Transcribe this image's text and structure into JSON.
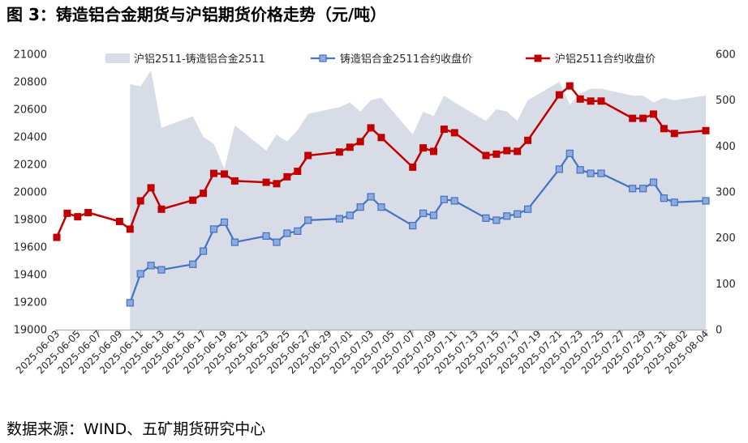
{
  "source": "数据来源：WIND、五矿期货研究中心",
  "chart_data": {
    "type": "line",
    "title": "图 3：铸造铝合金期货与沪铝期货价格走势（元/吨）",
    "x_range": [
      "2025-06-03",
      "2025-08-04"
    ],
    "x_ticks": [
      "2025-06-03",
      "2025-06-05",
      "2025-06-07",
      "2025-06-09",
      "2025-06-11",
      "2025-06-13",
      "2025-06-15",
      "2025-06-17",
      "2025-06-19",
      "2025-06-21",
      "2025-06-23",
      "2025-06-25",
      "2025-06-27",
      "2025-06-29",
      "2025-07-01",
      "2025-07-03",
      "2025-07-05",
      "2025-07-07",
      "2025-07-09",
      "2025-07-11",
      "2025-07-13",
      "2025-07-15",
      "2025-07-17",
      "2025-07-19",
      "2025-07-21",
      "2025-07-23",
      "2025-07-25",
      "2025-07-27",
      "2025-07-29",
      "2025-07-31",
      "2025-08-02",
      "2025-08-04"
    ],
    "y_left": {
      "min": 19000,
      "max": 21000,
      "ticks": [
        19000,
        19200,
        19400,
        19600,
        19800,
        20000,
        20200,
        20400,
        20600,
        20800,
        21000
      ]
    },
    "y_right": {
      "min": 0,
      "max": 600,
      "ticks": [
        0,
        100,
        200,
        300,
        400,
        500,
        600
      ]
    },
    "grid": false,
    "legend_position": "top",
    "series": [
      {
        "name": "沪铝2511-铸造铝合金2511",
        "kind": "area",
        "axis": "right",
        "color": "#D7DCE6",
        "x": [
          "2025-06-10",
          "2025-06-11",
          "2025-06-12",
          "2025-06-13",
          "2025-06-16",
          "2025-06-17",
          "2025-06-18",
          "2025-06-19",
          "2025-06-20",
          "2025-06-23",
          "2025-06-24",
          "2025-06-25",
          "2025-06-26",
          "2025-06-27",
          "2025-06-30",
          "2025-07-01",
          "2025-07-02",
          "2025-07-03",
          "2025-07-04",
          "2025-07-07",
          "2025-07-08",
          "2025-07-09",
          "2025-07-10",
          "2025-07-11",
          "2025-07-14",
          "2025-07-15",
          "2025-07-16",
          "2025-07-17",
          "2025-07-18",
          "2025-07-21",
          "2025-07-22",
          "2025-07-23",
          "2025-07-24",
          "2025-07-25",
          "2025-07-28",
          "2025-07-29",
          "2025-07-30",
          "2025-07-31",
          "2025-08-01",
          "2025-08-04"
        ],
        "values": [
          535,
          530,
          565,
          440,
          465,
          420,
          405,
          350,
          445,
          390,
          425,
          410,
          435,
          470,
          485,
          495,
          475,
          500,
          505,
          425,
          475,
          465,
          510,
          495,
          455,
          480,
          475,
          455,
          500,
          540,
          490,
          515,
          525,
          525,
          510,
          510,
          495,
          505,
          500,
          510
        ]
      },
      {
        "name": "铸造铝合金2511合约收盘价",
        "kind": "line",
        "axis": "left",
        "color": "#4472C4",
        "marker_fill": "#8EA9DB",
        "x": [
          "2025-06-10",
          "2025-06-11",
          "2025-06-12",
          "2025-06-13",
          "2025-06-16",
          "2025-06-17",
          "2025-06-18",
          "2025-06-19",
          "2025-06-20",
          "2025-06-23",
          "2025-06-24",
          "2025-06-25",
          "2025-06-26",
          "2025-06-27",
          "2025-06-30",
          "2025-07-01",
          "2025-07-02",
          "2025-07-03",
          "2025-07-04",
          "2025-07-07",
          "2025-07-08",
          "2025-07-09",
          "2025-07-10",
          "2025-07-11",
          "2025-07-14",
          "2025-07-15",
          "2025-07-16",
          "2025-07-17",
          "2025-07-18",
          "2025-07-21",
          "2025-07-22",
          "2025-07-23",
          "2025-07-24",
          "2025-07-25",
          "2025-07-28",
          "2025-07-29",
          "2025-07-30",
          "2025-07-31",
          "2025-08-01",
          "2025-08-04"
        ],
        "values": [
          19195,
          19405,
          19465,
          19435,
          19475,
          19570,
          19730,
          19780,
          19635,
          19680,
          19635,
          19700,
          19715,
          19795,
          19805,
          19830,
          19890,
          19965,
          19890,
          19755,
          19845,
          19830,
          19945,
          19935,
          19810,
          19795,
          19825,
          19840,
          19875,
          20165,
          20280,
          20160,
          20135,
          20135,
          20025,
          20025,
          20070,
          19955,
          19925,
          19935
        ]
      },
      {
        "name": "沪铝2511合约收盘价",
        "kind": "line",
        "axis": "left",
        "color": "#C00000",
        "marker_fill": "#C00000",
        "x": [
          "2025-06-03",
          "2025-06-04",
          "2025-06-05",
          "2025-06-06",
          "2025-06-09",
          "2025-06-10",
          "2025-06-11",
          "2025-06-12",
          "2025-06-13",
          "2025-06-16",
          "2025-06-17",
          "2025-06-18",
          "2025-06-19",
          "2025-06-20",
          "2025-06-23",
          "2025-06-24",
          "2025-06-25",
          "2025-06-26",
          "2025-06-27",
          "2025-06-30",
          "2025-07-01",
          "2025-07-02",
          "2025-07-03",
          "2025-07-04",
          "2025-07-07",
          "2025-07-08",
          "2025-07-09",
          "2025-07-10",
          "2025-07-11",
          "2025-07-14",
          "2025-07-15",
          "2025-07-16",
          "2025-07-17",
          "2025-07-18",
          "2025-07-21",
          "2025-07-22",
          "2025-07-23",
          "2025-07-24",
          "2025-07-25",
          "2025-07-28",
          "2025-07-29",
          "2025-07-30",
          "2025-07-31",
          "2025-08-01",
          "2025-08-04"
        ],
        "values": [
          19670,
          19845,
          19820,
          19850,
          19785,
          19730,
          19935,
          20030,
          19875,
          19940,
          19990,
          20135,
          20130,
          20080,
          20070,
          20060,
          20110,
          20150,
          20265,
          20290,
          20325,
          20365,
          20465,
          20395,
          20180,
          20320,
          20295,
          20455,
          20430,
          20265,
          20275,
          20300,
          20295,
          20375,
          20705,
          20770,
          20675,
          20660,
          20660,
          20535,
          20535,
          20565,
          20460,
          20425,
          20445
        ]
      }
    ]
  }
}
